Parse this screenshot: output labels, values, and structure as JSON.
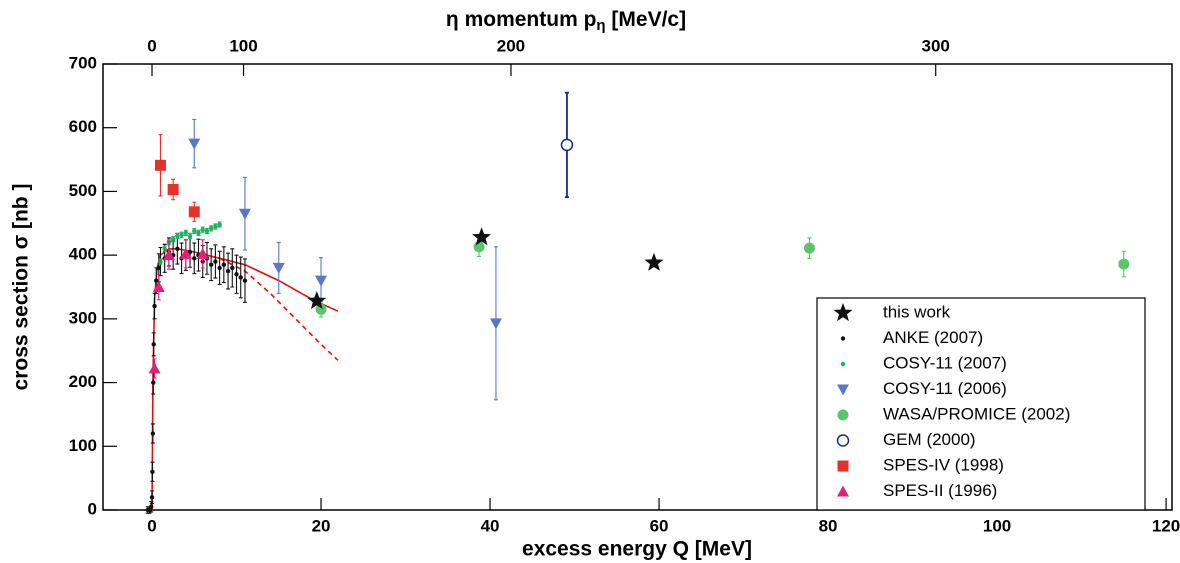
{
  "chart_data": {
    "type": "scatter",
    "xlabel": "excess energy Q [MeV]",
    "ylabel": "cross section σ [nb ]",
    "x2label": {
      "main": "η momentum p",
      "sub": "η",
      "tail": " [MeV/c]"
    },
    "xlim": [
      -5.8,
      120.7
    ],
    "ylim": [
      0,
      700
    ],
    "xticks": [
      0,
      20,
      40,
      60,
      80,
      100,
      120
    ],
    "yticks": [
      0,
      100,
      200,
      300,
      400,
      500,
      600,
      700
    ],
    "x2ticks": [
      0,
      100,
      200,
      300
    ],
    "series": [
      {
        "name": "this work",
        "marker": "star",
        "color": "#111111",
        "x": [
          19.5,
          39,
          59.4
        ],
        "values": [
          328,
          428,
          388
        ],
        "errors": [
          6,
          6,
          6
        ]
      },
      {
        "name": "ANKE (2007)",
        "marker": "dot",
        "color": "#111111",
        "x": [
          -0.5,
          -0.3,
          -0.1,
          0,
          0.05,
          0.1,
          0.15,
          0.2,
          0.3,
          0.5,
          0.8,
          1,
          1.5,
          2,
          2.5,
          3,
          3.5,
          4,
          4.5,
          5,
          5.5,
          6,
          6.5,
          7,
          7.5,
          8,
          8.5,
          9,
          9.5,
          10,
          10.5,
          11
        ],
        "values": [
          0,
          0,
          5,
          20,
          60,
          120,
          200,
          260,
          320,
          360,
          380,
          390,
          395,
          405,
          400,
          410,
          395,
          400,
          405,
          395,
          400,
          390,
          395,
          385,
          390,
          380,
          385,
          375,
          380,
          370,
          365,
          360
        ],
        "errors": [
          5,
          5,
          8,
          10,
          15,
          15,
          18,
          18,
          20,
          20,
          22,
          22,
          22,
          22,
          22,
          24,
          24,
          24,
          24,
          24,
          25,
          25,
          25,
          25,
          26,
          26,
          28,
          28,
          30,
          30,
          32,
          34
        ]
      },
      {
        "name": "COSY-11 (2007)",
        "marker": "dot",
        "color": "#19b35a",
        "x": [
          1,
          1.5,
          2,
          2.5,
          3,
          3.5,
          4,
          4.5,
          5,
          5.5,
          6,
          6.5,
          7,
          7.5,
          8
        ],
        "values": [
          390,
          410,
          420,
          425,
          430,
          432,
          435,
          430,
          438,
          435,
          440,
          438,
          442,
          445,
          448
        ],
        "errors": [
          4,
          4,
          4,
          4,
          4,
          4,
          4,
          4,
          4,
          4,
          4,
          4,
          4,
          4,
          4
        ]
      },
      {
        "name": "COSY-11 (2006)",
        "marker": "tri-down",
        "color": "#5a78c8",
        "x": [
          5,
          11,
          15,
          20,
          40.7
        ],
        "values": [
          575,
          465,
          380,
          360,
          293
        ],
        "errors": [
          38,
          57,
          40,
          36,
          120
        ]
      },
      {
        "name": "WASA/PROMICE (2002)",
        "marker": "circle",
        "color": "#5cc46a",
        "x": [
          20,
          38.7,
          77.8,
          115
        ],
        "values": [
          315,
          413,
          411,
          386
        ],
        "errors": [
          12,
          15,
          16,
          20
        ]
      },
      {
        "name": "GEM (2000)",
        "marker": "open-circle",
        "color": "#1a2a8c",
        "x": [
          49.1
        ],
        "values": [
          573
        ],
        "errors": [
          82
        ]
      },
      {
        "name": "SPES-IV (1998)",
        "marker": "square",
        "color": "#e8302a",
        "x": [
          1,
          2.5,
          5
        ],
        "values": [
          541,
          503,
          468
        ],
        "errors": [
          48,
          16,
          15
        ]
      },
      {
        "name": "SPES-II (1996)",
        "marker": "tri-up",
        "color": "#e0207a",
        "x": [
          0.3,
          0.8,
          2,
          4,
          6
        ],
        "values": [
          222,
          350,
          400,
          402,
          402
        ],
        "errors": [
          15,
          20,
          22,
          22,
          22
        ]
      }
    ],
    "curves": [
      {
        "color": "#e01010",
        "style": "solid",
        "x": [
          0,
          0.1,
          0.3,
          0.6,
          1,
          2,
          3,
          5,
          8,
          11,
          15,
          19,
          22
        ],
        "y": [
          0,
          200,
          330,
          380,
          400,
          410,
          410,
          405,
          395,
          385,
          360,
          330,
          312
        ]
      },
      {
        "color": "#e01010",
        "style": "dashed",
        "x": [
          8,
          11,
          14,
          17,
          20,
          22
        ],
        "y": [
          395,
          375,
          340,
          300,
          260,
          235
        ]
      }
    ]
  }
}
